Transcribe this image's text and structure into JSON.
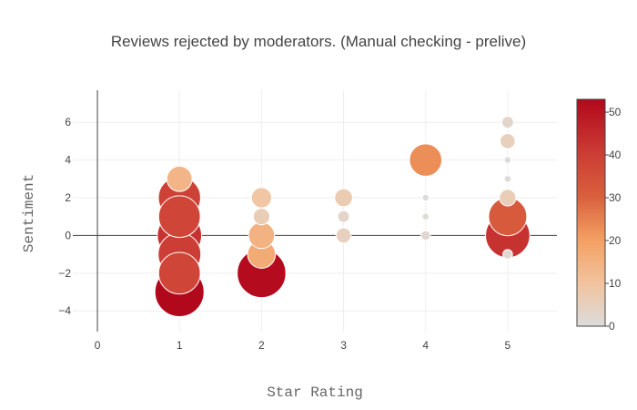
{
  "chart_data": {
    "type": "scatter",
    "title": "Reviews rejected by moderators. (Manual checking - prelive)",
    "xlabel": "Star Rating",
    "ylabel": "Sentiment",
    "xlim": [
      -0.3,
      5.6
    ],
    "ylim": [
      -5.1,
      7.7
    ],
    "x_ticks": [
      0,
      1,
      2,
      3,
      4,
      5
    ],
    "y_ticks": [
      -4,
      -2,
      0,
      2,
      4,
      6
    ],
    "grid": true,
    "colorbar": {
      "min": 0,
      "max": 53,
      "ticks": [
        0,
        10,
        20,
        30,
        40,
        50
      ]
    },
    "points": [
      {
        "x": 1,
        "y": 3,
        "count": 14
      },
      {
        "x": 1,
        "y": 2,
        "count": 39
      },
      {
        "x": 1,
        "y": 1,
        "count": 38
      },
      {
        "x": 1,
        "y": 0,
        "count": 43
      },
      {
        "x": 1,
        "y": -1,
        "count": 40
      },
      {
        "x": 1,
        "y": -2,
        "count": 38
      },
      {
        "x": 1,
        "y": -3,
        "count": 53
      },
      {
        "x": 2,
        "y": 2,
        "count": 9
      },
      {
        "x": 2,
        "y": 1,
        "count": 6
      },
      {
        "x": 2,
        "y": 0,
        "count": 15
      },
      {
        "x": 2,
        "y": -1,
        "count": 17
      },
      {
        "x": 2,
        "y": -2,
        "count": 52
      },
      {
        "x": 3,
        "y": 2,
        "count": 7
      },
      {
        "x": 3,
        "y": 1,
        "count": 3
      },
      {
        "x": 3,
        "y": 0,
        "count": 5
      },
      {
        "x": 4,
        "y": 4,
        "count": 23
      },
      {
        "x": 4,
        "y": 2,
        "count": 1
      },
      {
        "x": 4,
        "y": 1,
        "count": 1
      },
      {
        "x": 4,
        "y": 0,
        "count": 2
      },
      {
        "x": 5,
        "y": 6,
        "count": 3
      },
      {
        "x": 5,
        "y": 5,
        "count": 5
      },
      {
        "x": 5,
        "y": 4,
        "count": 1
      },
      {
        "x": 5,
        "y": 3,
        "count": 1
      },
      {
        "x": 5,
        "y": 2,
        "count": 6
      },
      {
        "x": 5,
        "y": 1,
        "count": 32
      },
      {
        "x": 5,
        "y": 0,
        "count": 43
      },
      {
        "x": 5,
        "y": -1,
        "count": 2
      }
    ]
  }
}
